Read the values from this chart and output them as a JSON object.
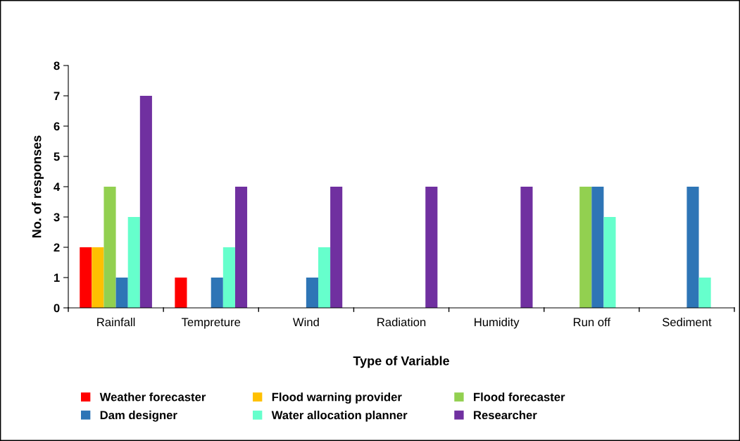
{
  "chart_data": {
    "type": "bar",
    "xlabel": "Type of Variable",
    "ylabel": "No. of responses",
    "categories": [
      "Rainfall",
      "Tempreture",
      "Wind",
      "Radiation",
      "Humidity",
      "Run off",
      "Sediment"
    ],
    "series": [
      {
        "name": "Weather forecaster",
        "color": "#ff0000",
        "values": [
          2,
          1,
          0,
          0,
          0,
          0,
          0
        ]
      },
      {
        "name": "Flood warning provider",
        "color": "#ffc000",
        "values": [
          2,
          0,
          0,
          0,
          0,
          0,
          0
        ]
      },
      {
        "name": "Flood forecaster",
        "color": "#92d050",
        "values": [
          4,
          0,
          0,
          0,
          0,
          4,
          0
        ]
      },
      {
        "name": "Dam designer",
        "color": "#2e75b6",
        "values": [
          1,
          1,
          1,
          0,
          0,
          4,
          4
        ]
      },
      {
        "name": "Water allocation planner",
        "color": "#66ffcc",
        "values": [
          3,
          2,
          2,
          0,
          0,
          3,
          1
        ]
      },
      {
        "name": "Researcher",
        "color": "#7030a0",
        "values": [
          7,
          4,
          4,
          4,
          4,
          0,
          0
        ]
      }
    ],
    "ylim": [
      0,
      8
    ],
    "yticks": [
      0,
      1,
      2,
      3,
      4,
      5,
      6,
      7,
      8
    ],
    "grid": false,
    "legend": "bottom"
  }
}
